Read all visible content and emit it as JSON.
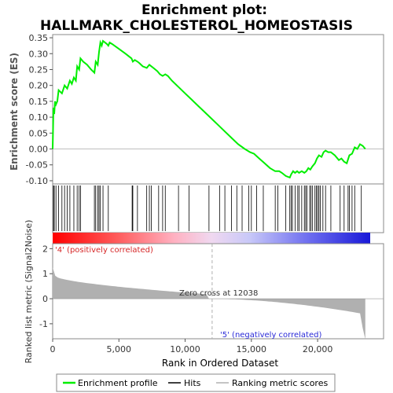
{
  "chart_data": {
    "type": "line",
    "title_line1": "Enrichment plot:",
    "title_line2": "HALLMARK_CHOLESTEROL_HOMEOSTASIS",
    "es_ylabel": "Enrichment score (ES)",
    "metric_ylabel_line1": "Ranked list metric (Signal2Noise)",
    "xlabel": "Rank in Ordered Dataset",
    "x_range": [
      0,
      24000
    ],
    "es_ylim": [
      -0.11,
      0.36
    ],
    "es_yticks": [
      "-0.10",
      "-0.05",
      "0.00",
      "0.05",
      "0.10",
      "0.15",
      "0.20",
      "0.25",
      "0.30",
      "0.35"
    ],
    "es_ytick_values": [
      -0.1,
      -0.05,
      0.0,
      0.05,
      0.1,
      0.15,
      0.2,
      0.25,
      0.3,
      0.35
    ],
    "metric_ylim": [
      -1.6,
      2.2
    ],
    "metric_yticks": [
      "-1",
      "0",
      "1",
      "2"
    ],
    "metric_ytick_values": [
      -1,
      0,
      1,
      2
    ],
    "xticks": [
      "0",
      "5,000",
      "10,000",
      "15,000",
      "20,000"
    ],
    "xtick_values": [
      0,
      5000,
      10000,
      15000,
      20000
    ],
    "zero_cross_label": "Zero cross at 12038",
    "zero_cross": 12038,
    "positive_label": "'4' (positively correlated)",
    "negative_label": "'5' (negatively correlated)",
    "legend": [
      "Enrichment profile",
      "Hits",
      "Ranking metric scores"
    ],
    "colors": {
      "profile": "#00ee00",
      "hits": "#000000",
      "metric": "#b0b0b0",
      "zero_line": "#c0c0c0"
    },
    "series": [
      {
        "name": "Enrichment profile",
        "x": [
          0,
          60,
          120,
          180,
          250,
          350,
          450,
          700,
          900,
          1100,
          1300,
          1450,
          1600,
          1750,
          1850,
          2000,
          2100,
          2300,
          2600,
          2900,
          3150,
          3250,
          3400,
          3500,
          3600,
          3700,
          3800,
          3950,
          4100,
          4200,
          4300,
          4500,
          5000,
          5500,
          5950,
          6050,
          6200,
          6400,
          6550,
          6800,
          7100,
          7300,
          7450,
          7600,
          7900,
          8100,
          8300,
          8500,
          8700,
          9000,
          9500,
          10000,
          10500,
          11000,
          11500,
          12000,
          12500,
          13000,
          13500,
          14000,
          14500,
          14900,
          15200,
          15600,
          16000,
          16400,
          16800,
          17100,
          17300,
          17600,
          17900,
          18000,
          18150,
          18300,
          18450,
          18600,
          18800,
          19000,
          19150,
          19300,
          19450,
          19600,
          19800,
          19950,
          20100,
          20300,
          20450,
          20600,
          20800,
          21000,
          21300,
          21600,
          21800,
          22000,
          22200,
          22400,
          22600,
          22800,
          23000,
          23200,
          23400,
          23600
        ],
        "y": [
          0.0,
          0.13,
          0.11,
          0.15,
          0.14,
          0.15,
          0.185,
          0.175,
          0.2,
          0.19,
          0.215,
          0.205,
          0.225,
          0.215,
          0.26,
          0.25,
          0.285,
          0.275,
          0.265,
          0.25,
          0.24,
          0.275,
          0.265,
          0.305,
          0.335,
          0.325,
          0.34,
          0.335,
          0.33,
          0.325,
          0.335,
          0.33,
          0.315,
          0.3,
          0.285,
          0.275,
          0.28,
          0.275,
          0.27,
          0.26,
          0.255,
          0.265,
          0.26,
          0.255,
          0.245,
          0.235,
          0.23,
          0.235,
          0.23,
          0.215,
          0.195,
          0.175,
          0.155,
          0.135,
          0.115,
          0.095,
          0.075,
          0.055,
          0.035,
          0.015,
          0.0,
          -0.01,
          -0.015,
          -0.03,
          -0.045,
          -0.06,
          -0.07,
          -0.07,
          -0.075,
          -0.085,
          -0.09,
          -0.08,
          -0.07,
          -0.075,
          -0.07,
          -0.075,
          -0.07,
          -0.075,
          -0.07,
          -0.06,
          -0.065,
          -0.055,
          -0.045,
          -0.03,
          -0.02,
          -0.025,
          -0.01,
          -0.005,
          -0.01,
          -0.01,
          -0.02,
          -0.035,
          -0.03,
          -0.04,
          -0.045,
          -0.02,
          -0.015,
          0.005,
          0.0,
          0.015,
          0.01,
          0.0
        ]
      }
    ],
    "hits": [
      60,
      120,
      250,
      450,
      700,
      900,
      1100,
      1300,
      1600,
      1850,
      2000,
      2100,
      3150,
      3250,
      3400,
      3500,
      3600,
      3800,
      4200,
      6000,
      6050,
      6400,
      7100,
      7300,
      7450,
      8000,
      8300,
      8500,
      9500,
      10300,
      11800,
      12600,
      13000,
      13500,
      13900,
      14300,
      14800,
      15000,
      15400,
      15900,
      16800,
      17000,
      17600,
      17900,
      18000,
      18100,
      18300,
      18500,
      18600,
      18800,
      19000,
      19100,
      19200,
      19400,
      19500,
      19600,
      19800,
      19900,
      20000,
      20100,
      20200,
      20400,
      20600,
      21000,
      21700,
      22000,
      22300,
      22400,
      22600,
      22800,
      23300
    ]
  }
}
